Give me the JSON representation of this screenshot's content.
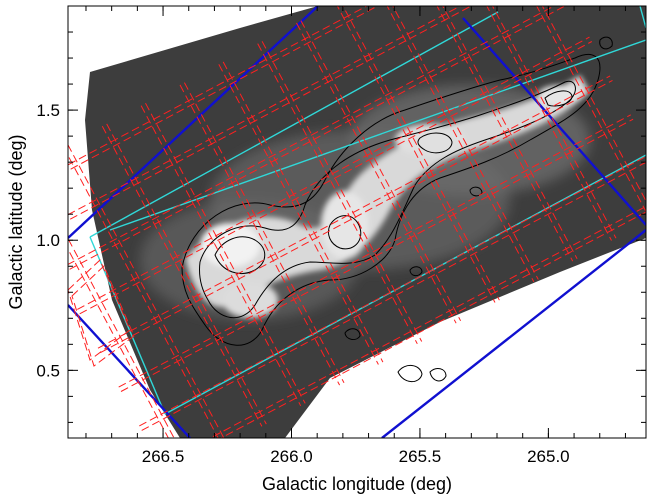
{
  "figure": {
    "xlabel": "Galactic longitude (deg)",
    "ylabel": "Galactic latitude (deg)",
    "xlim": [
      266.87,
      264.62
    ],
    "ylim": [
      0.24,
      1.9
    ],
    "x_ticks": [
      {
        "value": 266.5,
        "label": "266.5"
      },
      {
        "value": 266.0,
        "label": "266.0"
      },
      {
        "value": 265.5,
        "label": "265.5"
      },
      {
        "value": 265.0,
        "label": "265.0"
      }
    ],
    "y_ticks": [
      {
        "value": 0.5,
        "label": "0.5"
      },
      {
        "value": 1.0,
        "label": "1.0"
      },
      {
        "value": 1.5,
        "label": "1.5"
      }
    ]
  },
  "colors": {
    "map_dark": "#3a3a3a",
    "map_bright": "#e8e8e8",
    "contour": "#000000",
    "footprint_red": "#ff2020",
    "footprint_blue": "#1010d0",
    "footprint_cyan": "#30d8d8"
  }
}
